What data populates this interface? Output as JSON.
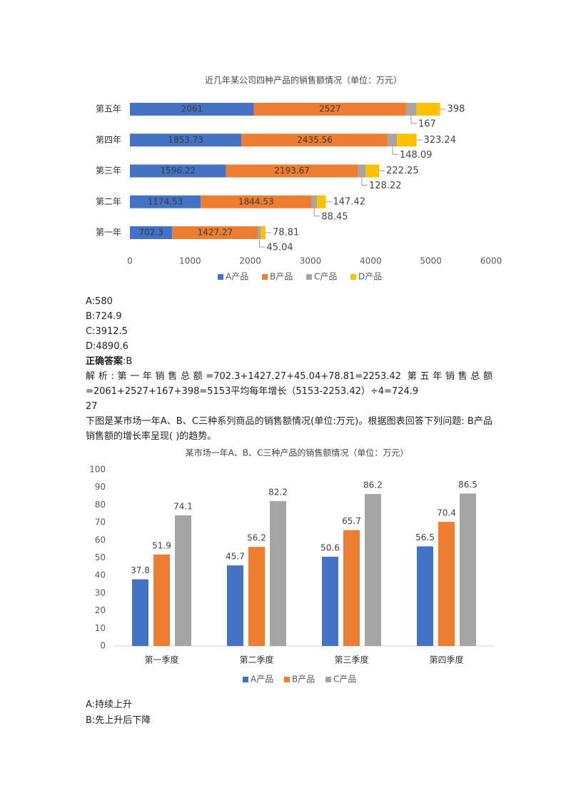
{
  "chart_data": [
    {
      "type": "bar",
      "orientation": "horizontal",
      "stacked": true,
      "title": "近几年某公司四种产品的销售额情况（单位：万元）",
      "categories": [
        "第一年",
        "第二年",
        "第三年",
        "第四年",
        "第五年"
      ],
      "series": [
        {
          "name": "A产品",
          "color": "#4472c4",
          "values": [
            702.3,
            1174.53,
            1596.22,
            1853.73,
            2061
          ]
        },
        {
          "name": "B产品",
          "color": "#ed7d31",
          "values": [
            1427.27,
            1844.53,
            2193.67,
            2435.56,
            2527
          ]
        },
        {
          "name": "C产品",
          "color": "#a5a5a5",
          "values": [
            45.04,
            88.45,
            128.22,
            148.09,
            167
          ]
        },
        {
          "name": "D产品",
          "color": "#ffc000",
          "values": [
            78.81,
            147.42,
            222.25,
            323.24,
            398
          ]
        }
      ],
      "xlim": [
        0,
        6000
      ],
      "xticks": [
        0,
        1000,
        2000,
        3000,
        4000,
        5000,
        6000
      ],
      "grid": false
    },
    {
      "type": "bar",
      "orientation": "vertical",
      "stacked": false,
      "title": "某市场一年A、B、C三种产品的销售额情况（单位：万元）",
      "categories": [
        "第一季度",
        "第二季度",
        "第三季度",
        "第四季度"
      ],
      "series": [
        {
          "name": "A产品",
          "color": "#4472c4",
          "values": [
            37.8,
            45.7,
            50.6,
            56.5
          ]
        },
        {
          "name": "B产品",
          "color": "#ed7d31",
          "values": [
            51.9,
            56.2,
            65.7,
            70.4
          ]
        },
        {
          "name": "C产品",
          "color": "#a5a5a5",
          "values": [
            74.1,
            82.2,
            86.2,
            86.5
          ]
        }
      ],
      "ylim": [
        0,
        100
      ],
      "yticks": [
        0,
        10,
        20,
        30,
        40,
        50,
        60,
        70,
        80,
        90,
        100
      ],
      "grid": false
    }
  ],
  "document": {
    "options": [
      "A:580",
      "B:724.9",
      "C:3912.5",
      "D:4890.6"
    ],
    "answer_label": "正确答案",
    "answer": ":B",
    "explanation": "解析:第一年销售总额=702.3+1427.27+45.04+78.81=2253.42 第五年销售总额=2061+2527+167+398=5153平均每年增长（5153-2253.42）÷4=724.9",
    "question_number": "27",
    "question": "下图是某市场一年A、B、C三种系列商品的销售额情况(单位:万元)。根据图表回答下列问题: B产品销售额的增长率呈现( )的趋势。",
    "question_options": [
      "A:持续上升",
      "B:先上升后下降"
    ]
  }
}
